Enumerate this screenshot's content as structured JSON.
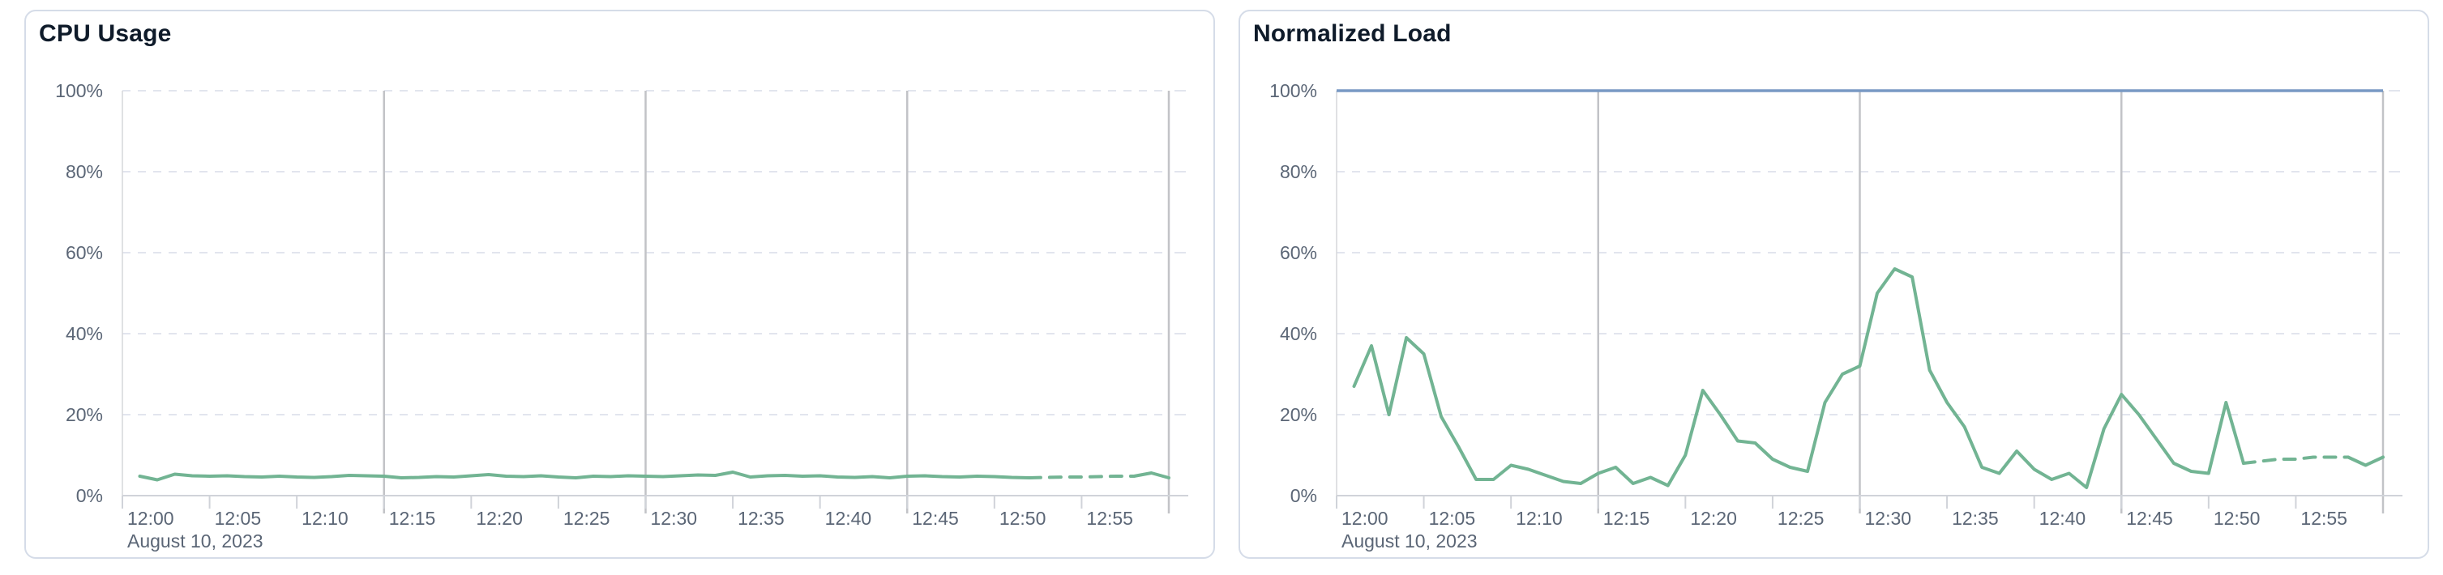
{
  "panels": [
    {
      "title": "CPU Usage"
    },
    {
      "title": "Normalized Load"
    }
  ],
  "colors": {
    "series_green": "#72b493",
    "reference_blue": "#7899c4",
    "grid_dashed": "#e2e5ee",
    "grid_vertical": "#c2c3c7",
    "axis_line": "#d0d3d9",
    "plot_left_border": "#d6d7da",
    "tick_label": "#5b6676",
    "title_text": "#0f1b2a",
    "panel_border": "#d5dce8"
  },
  "chart_data": [
    {
      "type": "line",
      "title": "CPU Usage",
      "xlabel": "",
      "ylabel": "",
      "ylim": [
        0,
        100
      ],
      "y_tick_labels": [
        "0%",
        "20%",
        "40%",
        "60%",
        "80%",
        "100%"
      ],
      "y_tick_values": [
        0,
        20,
        40,
        60,
        80,
        100
      ],
      "x_tick_labels": [
        "12:00",
        "12:05",
        "12:10",
        "12:15",
        "12:20",
        "12:25",
        "12:30",
        "12:35",
        "12:40",
        "12:45",
        "12:50",
        "12:55"
      ],
      "x_tick_minutes": [
        0,
        5,
        10,
        15,
        20,
        25,
        30,
        35,
        40,
        45,
        50,
        55
      ],
      "x_range_minutes": [
        0,
        60
      ],
      "date_label": "August 10, 2023",
      "vertical_gridline_minutes": [
        15,
        30,
        45,
        60
      ],
      "grid": true,
      "legend": "none",
      "reference_lines": [],
      "series": [
        {
          "name": "cpu-usage-percent",
          "color": "#72b493",
          "start_minute": 1,
          "values": [
            4.8,
            3.9,
            5.3,
            4.9,
            4.8,
            4.9,
            4.7,
            4.6,
            4.8,
            4.6,
            4.5,
            4.7,
            5.0,
            4.9,
            4.8,
            4.4,
            4.5,
            4.7,
            4.6,
            4.9,
            5.2,
            4.8,
            4.7,
            4.9,
            4.6,
            4.4,
            4.8,
            4.7,
            4.9,
            4.8,
            4.7,
            4.9,
            5.1,
            5.0,
            5.8,
            4.6,
            4.9,
            5.0,
            4.8,
            4.9,
            4.6,
            4.5,
            4.7,
            4.4,
            4.8,
            4.9,
            4.7,
            4.6,
            4.8,
            4.7,
            4.5,
            4.4,
            4.5,
            4.6,
            4.6,
            4.7,
            4.8,
            4.8,
            5.6,
            4.4
          ],
          "style_segments": [
            {
              "start_minute": 1,
              "end_minute": 52,
              "style": "solid"
            },
            {
              "start_minute": 52,
              "end_minute": 58,
              "style": "dashed"
            },
            {
              "start_minute": 58,
              "end_minute": 60,
              "style": "solid"
            }
          ]
        }
      ]
    },
    {
      "type": "line",
      "title": "Normalized Load",
      "xlabel": "",
      "ylabel": "",
      "ylim": [
        0,
        100
      ],
      "y_tick_labels": [
        "0%",
        "20%",
        "40%",
        "60%",
        "80%",
        "100%"
      ],
      "y_tick_values": [
        0,
        20,
        40,
        60,
        80,
        100
      ],
      "x_tick_labels": [
        "12:00",
        "12:05",
        "12:10",
        "12:15",
        "12:20",
        "12:25",
        "12:30",
        "12:35",
        "12:40",
        "12:45",
        "12:50",
        "12:55"
      ],
      "x_tick_minutes": [
        0,
        5,
        10,
        15,
        20,
        25,
        30,
        35,
        40,
        45,
        50,
        55
      ],
      "x_range_minutes": [
        0,
        60
      ],
      "date_label": "August 10, 2023",
      "vertical_gridline_minutes": [
        15,
        30,
        45,
        60
      ],
      "grid": true,
      "legend": "none",
      "reference_lines": [
        {
          "value": 100,
          "color": "#7899c4",
          "style": "solid",
          "name": "100-percent-ceiling"
        }
      ],
      "series": [
        {
          "name": "normalized-load-percent",
          "color": "#72b493",
          "start_minute": 1,
          "values": [
            27,
            37,
            20,
            39,
            35,
            19.5,
            12,
            4,
            4,
            7.5,
            6.5,
            5,
            3.5,
            3,
            5.5,
            7,
            3,
            4.5,
            2.5,
            10,
            26,
            20,
            13.5,
            13,
            9,
            7,
            6,
            23,
            30,
            32,
            50,
            56,
            54,
            31,
            23,
            17,
            7,
            5.5,
            11,
            6.5,
            4,
            5.5,
            2,
            16.5,
            25,
            20,
            14,
            8,
            6,
            5.5,
            23,
            8,
            8.5,
            9,
            9,
            9.5,
            9.5,
            9.5,
            7.5,
            9.5
          ],
          "style_segments": [
            {
              "start_minute": 1,
              "end_minute": 52,
              "style": "solid"
            },
            {
              "start_minute": 52,
              "end_minute": 58,
              "style": "dashed"
            },
            {
              "start_minute": 58,
              "end_minute": 60,
              "style": "solid"
            }
          ]
        }
      ]
    }
  ]
}
